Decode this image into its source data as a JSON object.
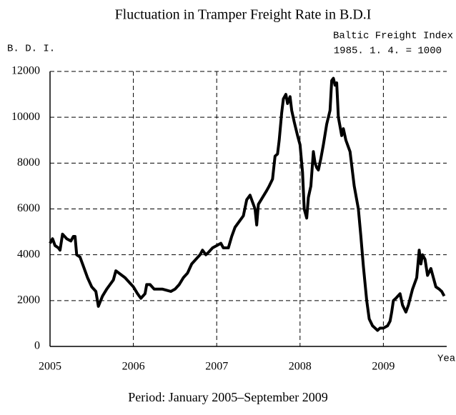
{
  "chart_data": {
    "type": "line",
    "title": "Fluctuation in Tramper Freight Rate in B.D.I",
    "y_label": "B. D. I.",
    "annotations": [
      "Baltic Freight Index",
      "1985. 1. 4. = 1000"
    ],
    "x_label": "Year",
    "footer": "Period: January 2005–September 2009",
    "color": "#000000",
    "grid": true,
    "xlim": [
      2005,
      2009.76
    ],
    "xticks": [
      2005,
      2006,
      2007,
      2008,
      2009
    ],
    "ylim": [
      0,
      12000
    ],
    "yticks": [
      0,
      2000,
      4000,
      6000,
      8000,
      10000,
      12000
    ],
    "x": [
      2005.0,
      2005.03,
      2005.06,
      2005.1,
      2005.12,
      2005.15,
      2005.2,
      2005.25,
      2005.28,
      2005.3,
      2005.32,
      2005.36,
      2005.4,
      2005.45,
      2005.5,
      2005.55,
      2005.58,
      2005.63,
      2005.68,
      2005.72,
      2005.76,
      2005.79,
      2005.9,
      2006.0,
      2006.05,
      2006.09,
      2006.14,
      2006.16,
      2006.2,
      2006.25,
      2006.35,
      2006.45,
      2006.5,
      2006.55,
      2006.6,
      2006.65,
      2006.7,
      2006.75,
      2006.8,
      2006.83,
      2006.87,
      2006.9,
      2006.95,
      2007.0,
      2007.05,
      2007.08,
      2007.14,
      2007.18,
      2007.22,
      2007.28,
      2007.32,
      2007.36,
      2007.4,
      2007.43,
      2007.46,
      2007.48,
      2007.5,
      2007.55,
      2007.6,
      2007.63,
      2007.67,
      2007.7,
      2007.73,
      2007.75,
      2007.78,
      2007.8,
      2007.83,
      2007.85,
      2007.88,
      2007.9,
      2007.93,
      2007.97,
      2008.0,
      2008.03,
      2008.05,
      2008.08,
      2008.1,
      2008.13,
      2008.16,
      2008.18,
      2008.2,
      2008.22,
      2008.25,
      2008.28,
      2008.32,
      2008.36,
      2008.38,
      2008.4,
      2008.42,
      2008.44,
      2008.46,
      2008.5,
      2008.52,
      2008.55,
      2008.6,
      2008.65,
      2008.7,
      2008.73,
      2008.76,
      2008.8,
      2008.83,
      2008.87,
      2008.9,
      2008.93,
      2008.96,
      2009.0,
      2009.05,
      2009.08,
      2009.1,
      2009.12,
      2009.15,
      2009.2,
      2009.23,
      2009.27,
      2009.3,
      2009.35,
      2009.4,
      2009.43,
      2009.45,
      2009.47,
      2009.5,
      2009.53,
      2009.57,
      2009.6,
      2009.63,
      2009.67,
      2009.7,
      2009.73
    ],
    "values": [
      4500,
      4700,
      4400,
      4300,
      4200,
      4900,
      4700,
      4600,
      4800,
      4800,
      4000,
      3900,
      3500,
      3000,
      2600,
      2400,
      1750,
      2200,
      2500,
      2700,
      2900,
      3300,
      3000,
      2600,
      2300,
      2100,
      2300,
      2700,
      2700,
      2500,
      2500,
      2400,
      2500,
      2700,
      3000,
      3200,
      3600,
      3800,
      4000,
      4200,
      4000,
      4100,
      4300,
      4400,
      4500,
      4300,
      4300,
      4800,
      5200,
      5500,
      5700,
      6400,
      6600,
      6300,
      6000,
      5300,
      6200,
      6500,
      6800,
      7000,
      7300,
      8300,
      8400,
      9000,
      10200,
      10800,
      11000,
      10600,
      10900,
      10300,
      9800,
      9200,
      8800,
      7600,
      6000,
      5600,
      6500,
      7000,
      8500,
      8000,
      7800,
      7700,
      8200,
      8800,
      9700,
      10300,
      11600,
      11700,
      11400,
      11500,
      10000,
      9200,
      9500,
      9000,
      8500,
      7000,
      6000,
      4800,
      3500,
      2000,
      1200,
      900,
      800,
      700,
      800,
      800,
      900,
      1100,
      1500,
      2000,
      2100,
      2300,
      1800,
      1500,
      1800,
      2500,
      3000,
      4200,
      3600,
      4000,
      3800,
      3100,
      3400,
      3000,
      2600,
      2500,
      2400,
      2200
    ]
  }
}
